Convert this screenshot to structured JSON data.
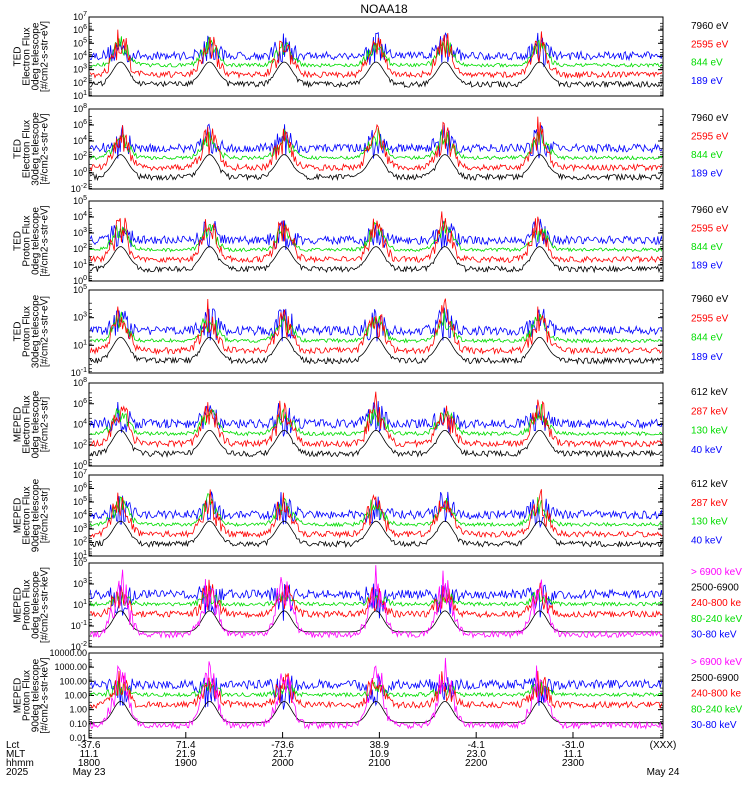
{
  "chart_data": {
    "type": "line",
    "title": "NOAA18",
    "colors": {
      "blue": "#0000ff",
      "red": "#ff0000",
      "green": "#00dd00",
      "black": "#000000",
      "magenta": "#ff00ff"
    },
    "x_ticks": {
      "lct": [
        "-37.6",
        "71.4",
        "-73.6",
        "38.9",
        "-4.1",
        "-31.0",
        "(XXX)"
      ],
      "mlt": [
        "11.1",
        "21.9",
        "21.7",
        "10.9",
        "23.0",
        "11.1",
        ""
      ],
      "hhmm": [
        "1800",
        "1900",
        "2000",
        "2100",
        "2200",
        "2300",
        ""
      ],
      "date": [
        "May 23",
        "",
        "",
        "",
        "",
        "",
        "May 24"
      ]
    },
    "x_row_labels": [
      "Lct",
      "MLT",
      "hhmm",
      "2025"
    ],
    "panels": [
      {
        "id": "ted-electron-0deg",
        "ylabel_lines": [
          "TED",
          "Electron Flux",
          "0deg telescope",
          "[#/cm2-s-str-eV]"
        ],
        "y_ticks": [
          "10^7",
          "10^6",
          "10^5",
          "10^4",
          "10^3",
          "10^2",
          "10^1"
        ],
        "legend": [
          {
            "label": "7960 eV",
            "color": "black"
          },
          {
            "label": "2595 eV",
            "color": "red"
          },
          {
            "label": "844 eV",
            "color": "green"
          },
          {
            "label": "189 eV",
            "color": "blue"
          }
        ]
      },
      {
        "id": "ted-electron-30deg",
        "ylabel_lines": [
          "TED",
          "Electron Flux",
          "30deg telescope",
          "[#/cm2-s-str-eV]"
        ],
        "y_ticks": [
          "10^8",
          "10^6",
          "10^4",
          "10^2",
          "10^0",
          "10^-2"
        ],
        "legend": [
          {
            "label": "7960 eV",
            "color": "black"
          },
          {
            "label": "2595 eV",
            "color": "red"
          },
          {
            "label": "844 eV",
            "color": "green"
          },
          {
            "label": "189 eV",
            "color": "blue"
          }
        ]
      },
      {
        "id": "ted-proton-0deg",
        "ylabel_lines": [
          "TED",
          "Proton Flux",
          "0deg telescope",
          "[#/cm2-s-str-eV]"
        ],
        "y_ticks": [
          "10^5",
          "10^4",
          "10^3",
          "10^2",
          "10^1",
          "10^0"
        ],
        "legend": [
          {
            "label": "7960 eV",
            "color": "black"
          },
          {
            "label": "2595 eV",
            "color": "red"
          },
          {
            "label": "844 eV",
            "color": "green"
          },
          {
            "label": "189 eV",
            "color": "blue"
          }
        ]
      },
      {
        "id": "ted-proton-30deg",
        "ylabel_lines": [
          "TED",
          "Proton Flux",
          "30deg telescope",
          "[#/cm2-s-str-eV]"
        ],
        "y_ticks": [
          "10^5",
          "10^3",
          "10^1",
          "10^-1"
        ],
        "legend": [
          {
            "label": "7960 eV",
            "color": "black"
          },
          {
            "label": "2595 eV",
            "color": "red"
          },
          {
            "label": "844 eV",
            "color": "green"
          },
          {
            "label": "189 eV",
            "color": "blue"
          }
        ]
      },
      {
        "id": "meped-electron-0deg",
        "ylabel_lines": [
          "MEPED",
          "Electron Flux",
          "0deg telescope",
          "[#/cm2-s-str]"
        ],
        "y_ticks": [
          "10^8",
          "10^6",
          "10^4",
          "10^2",
          "10^0"
        ],
        "legend": [
          {
            "label": "612 keV",
            "color": "black"
          },
          {
            "label": "287 keV",
            "color": "red"
          },
          {
            "label": "130 keV",
            "color": "green"
          },
          {
            "label": "40 keV",
            "color": "blue"
          }
        ]
      },
      {
        "id": "meped-electron-90deg",
        "ylabel_lines": [
          "MEPED",
          "Electron Flux",
          "90deg telescope",
          "[#/cm2-s-str]"
        ],
        "y_ticks": [
          "10^7",
          "10^6",
          "10^5",
          "10^4",
          "10^3",
          "10^2",
          "10^1"
        ],
        "legend": [
          {
            "label": "612 keV",
            "color": "black"
          },
          {
            "label": "287 keV",
            "color": "red"
          },
          {
            "label": "130 keV",
            "color": "green"
          },
          {
            "label": "40 keV",
            "color": "blue"
          }
        ]
      },
      {
        "id": "meped-proton-0deg",
        "ylabel_lines": [
          "MEPED",
          "Proton Flux",
          "0deg telescope",
          "[#/cm2-s-str-keV]"
        ],
        "y_ticks": [
          "10^5",
          "10^3",
          "10^1",
          "10^-1",
          "10^-2"
        ],
        "legend": [
          {
            "label": "> 6900 keV",
            "color": "magenta"
          },
          {
            "label": "2500-6900",
            "color": "black"
          },
          {
            "label": "240-800 ke",
            "color": "red"
          },
          {
            "label": "80-240 keV",
            "color": "green"
          },
          {
            "label": "30-80 keV",
            "color": "blue"
          }
        ]
      },
      {
        "id": "meped-proton-90deg",
        "ylabel_lines": [
          "MEPED",
          "Proton Flux",
          "90deg telescope",
          "[#/cm2-s-str-keV]"
        ],
        "y_ticks": [
          "10000.00",
          "1000.00",
          "100.00",
          "10.00",
          "1.00",
          "0.10",
          "0.01"
        ],
        "legend": [
          {
            "label": "> 6900 keV",
            "color": "magenta"
          },
          {
            "label": "2500-6900",
            "color": "black"
          },
          {
            "label": "240-800 ke",
            "color": "red"
          },
          {
            "label": "80-240 keV",
            "color": "green"
          },
          {
            "label": "30-80 keV",
            "color": "blue"
          }
        ]
      }
    ]
  }
}
